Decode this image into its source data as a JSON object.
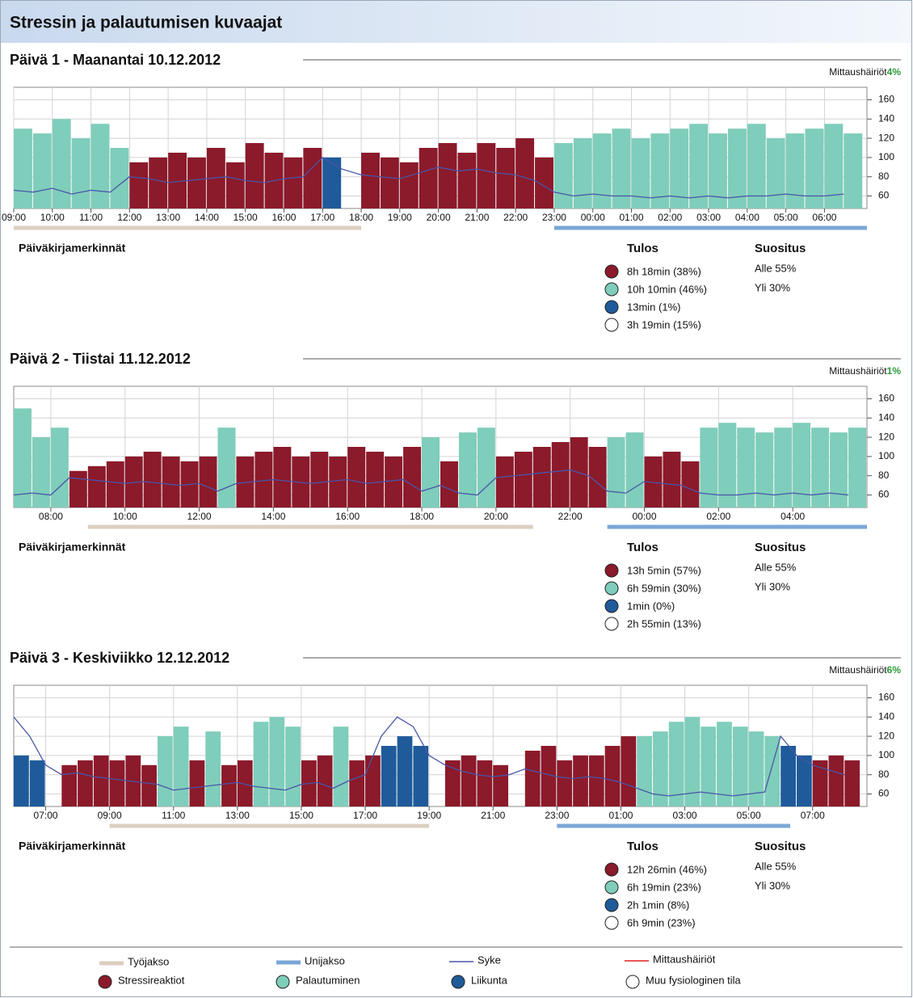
{
  "header": {
    "title": "Stressin ja palautumisen kuvaajat"
  },
  "labels": {
    "diary": "Päiväkirjamerkinnät",
    "result": "Tulos",
    "recommendation": "Suositus",
    "disturbance": "Mittaushäiriöt"
  },
  "chart_data": [
    {
      "type": "bar",
      "title": "Päivä 1 - Maanantai 10.12.2012",
      "disturbance": "4%",
      "xlim": [
        9,
        31.1
      ],
      "xticks": [
        {
          "value": 9,
          "label": "09:00"
        },
        {
          "value": 10,
          "label": "10:00"
        },
        {
          "value": 11,
          "label": "11:00"
        },
        {
          "value": 12,
          "label": "12:00"
        },
        {
          "value": 13,
          "label": "13:00"
        },
        {
          "value": 14,
          "label": "14:00"
        },
        {
          "value": 15,
          "label": "15:00"
        },
        {
          "value": 16,
          "label": "16:00"
        },
        {
          "value": 17,
          "label": "17:00"
        },
        {
          "value": 18,
          "label": "18:00"
        },
        {
          "value": 19,
          "label": "19:00"
        },
        {
          "value": 20,
          "label": "20:00"
        },
        {
          "value": 21,
          "label": "21:00"
        },
        {
          "value": 22,
          "label": "22:00"
        },
        {
          "value": 23,
          "label": "23:00"
        },
        {
          "value": 24,
          "label": "00:00"
        },
        {
          "value": 25,
          "label": "01:00"
        },
        {
          "value": 26,
          "label": "02:00"
        },
        {
          "value": 27,
          "label": "03:00"
        },
        {
          "value": 28,
          "label": "04:00"
        },
        {
          "value": 29,
          "label": "05:00"
        },
        {
          "value": 30,
          "label": "06:00"
        }
      ],
      "ylim": [
        47,
        173
      ],
      "yticks": [
        60,
        80,
        100,
        120,
        140,
        160
      ],
      "work_period": [
        9,
        18
      ],
      "sleep_period": [
        23,
        31.1
      ],
      "x": [
        9,
        9.5,
        10,
        10.5,
        11,
        11.5,
        12,
        12.5,
        13,
        13.5,
        14,
        14.5,
        15,
        15.5,
        16,
        16.5,
        17,
        17.5,
        18,
        18.5,
        19,
        19.5,
        20,
        20.5,
        21,
        21.5,
        22,
        22.5,
        23,
        23.5,
        24,
        24.5,
        25,
        25.5,
        26,
        26.5,
        27,
        27.5,
        28,
        28.5,
        29,
        29.5,
        30,
        30.5
      ],
      "values": [
        130,
        125,
        140,
        120,
        135,
        110,
        95,
        100,
        105,
        100,
        110,
        95,
        115,
        105,
        100,
        110,
        100,
        null,
        105,
        100,
        95,
        110,
        115,
        105,
        115,
        110,
        120,
        100,
        115,
        120,
        125,
        130,
        120,
        125,
        130,
        135,
        125,
        130,
        135,
        120,
        125,
        130,
        135,
        125
      ],
      "bar_colors": [
        "#7fcdbb",
        "#7fcdbb",
        "#7fcdbb",
        "#7fcdbb",
        "#7fcdbb",
        "#7fcdbb",
        "#8b1a2b",
        "#8b1a2b",
        "#8b1a2b",
        "#8b1a2b",
        "#8b1a2b",
        "#8b1a2b",
        "#8b1a2b",
        "#8b1a2b",
        "#8b1a2b",
        "#8b1a2b",
        "#1f5b9a",
        null,
        "#8b1a2b",
        "#8b1a2b",
        "#8b1a2b",
        "#8b1a2b",
        "#8b1a2b",
        "#8b1a2b",
        "#8b1a2b",
        "#8b1a2b",
        "#8b1a2b",
        "#8b1a2b",
        "#7fcdbb",
        "#7fcdbb",
        "#7fcdbb",
        "#7fcdbb",
        "#7fcdbb",
        "#7fcdbb",
        "#7fcdbb",
        "#7fcdbb",
        "#7fcdbb",
        "#7fcdbb",
        "#7fcdbb",
        "#7fcdbb",
        "#7fcdbb",
        "#7fcdbb",
        "#7fcdbb",
        "#7fcdbb"
      ],
      "line": {
        "color": "#4a55a8",
        "values": [
          66,
          64,
          68,
          62,
          66,
          64,
          80,
          78,
          74,
          76,
          78,
          80,
          76,
          74,
          78,
          80,
          100,
          88,
          82,
          80,
          78,
          84,
          90,
          86,
          88,
          84,
          82,
          76,
          64,
          60,
          62,
          60,
          60,
          58,
          60,
          58,
          60,
          58,
          60,
          60,
          62,
          60,
          60,
          62
        ]
      },
      "results": [
        {
          "color": "#8b1a2b",
          "text": "8h 18min (38%)"
        },
        {
          "color": "#7fcdbb",
          "text": "10h 10min (46%)"
        },
        {
          "color": "#1f5b9a",
          "text": "13min (1%)"
        },
        {
          "color": "#ffffff",
          "text": "3h 19min (15%)"
        }
      ],
      "recommendations": [
        "Alle 55%",
        "Yli 30%"
      ]
    },
    {
      "type": "bar",
      "title": "Päivä 2 - Tiistai 11.12.2012",
      "disturbance": "1%",
      "xlim": [
        7,
        30
      ],
      "xticks": [
        {
          "value": 8,
          "label": "08:00"
        },
        {
          "value": 10,
          "label": "10:00"
        },
        {
          "value": 12,
          "label": "12:00"
        },
        {
          "value": 14,
          "label": "14:00"
        },
        {
          "value": 16,
          "label": "16:00"
        },
        {
          "value": 18,
          "label": "18:00"
        },
        {
          "value": 20,
          "label": "20:00"
        },
        {
          "value": 22,
          "label": "22:00"
        },
        {
          "value": 24,
          "label": "00:00"
        },
        {
          "value": 26,
          "label": "02:00"
        },
        {
          "value": 28,
          "label": "04:00"
        }
      ],
      "ylim": [
        47,
        173
      ],
      "yticks": [
        60,
        80,
        100,
        120,
        140,
        160
      ],
      "work_period": [
        9,
        21
      ],
      "sleep_period": [
        23,
        30
      ],
      "x": [
        7,
        7.5,
        8,
        8.5,
        9,
        9.5,
        10,
        10.5,
        11,
        11.5,
        12,
        12.5,
        13,
        13.5,
        14,
        14.5,
        15,
        15.5,
        16,
        16.5,
        17,
        17.5,
        18,
        18.5,
        19,
        19.5,
        20,
        20.5,
        21,
        21.5,
        22,
        22.5,
        23,
        23.5,
        24,
        24.5,
        25,
        25.5,
        26,
        26.5,
        27,
        27.5,
        28,
        28.5,
        29,
        29.5
      ],
      "values": [
        150,
        120,
        130,
        85,
        90,
        95,
        100,
        105,
        100,
        95,
        100,
        130,
        100,
        105,
        110,
        100,
        105,
        100,
        110,
        105,
        100,
        110,
        120,
        95,
        125,
        130,
        100,
        105,
        110,
        115,
        120,
        110,
        120,
        125,
        100,
        105,
        95,
        130,
        135,
        130,
        125,
        130,
        135,
        130,
        125,
        130
      ],
      "bar_colors": [
        "#7fcdbb",
        "#7fcdbb",
        "#7fcdbb",
        "#8b1a2b",
        "#8b1a2b",
        "#8b1a2b",
        "#8b1a2b",
        "#8b1a2b",
        "#8b1a2b",
        "#8b1a2b",
        "#8b1a2b",
        "#7fcdbb",
        "#8b1a2b",
        "#8b1a2b",
        "#8b1a2b",
        "#8b1a2b",
        "#8b1a2b",
        "#8b1a2b",
        "#8b1a2b",
        "#8b1a2b",
        "#8b1a2b",
        "#8b1a2b",
        "#7fcdbb",
        "#8b1a2b",
        "#7fcdbb",
        "#7fcdbb",
        "#8b1a2b",
        "#8b1a2b",
        "#8b1a2b",
        "#8b1a2b",
        "#8b1a2b",
        "#8b1a2b",
        "#7fcdbb",
        "#7fcdbb",
        "#8b1a2b",
        "#8b1a2b",
        "#8b1a2b",
        "#7fcdbb",
        "#7fcdbb",
        "#7fcdbb",
        "#7fcdbb",
        "#7fcdbb",
        "#7fcdbb",
        "#7fcdbb",
        "#7fcdbb",
        "#7fcdbb"
      ],
      "line": {
        "color": "#4a55a8",
        "values": [
          60,
          62,
          60,
          78,
          76,
          74,
          72,
          74,
          72,
          70,
          72,
          64,
          72,
          74,
          76,
          74,
          72,
          74,
          76,
          72,
          74,
          76,
          64,
          70,
          62,
          60,
          78,
          80,
          82,
          84,
          86,
          80,
          64,
          62,
          74,
          72,
          70,
          62,
          60,
          60,
          62,
          60,
          62,
          60,
          62,
          60
        ]
      },
      "results": [
        {
          "color": "#8b1a2b",
          "text": "13h 5min (57%)"
        },
        {
          "color": "#7fcdbb",
          "text": "6h 59min (30%)"
        },
        {
          "color": "#1f5b9a",
          "text": "1min (0%)"
        },
        {
          "color": "#ffffff",
          "text": "2h 55min (13%)"
        }
      ],
      "recommendations": [
        "Alle 55%",
        "Yli 30%"
      ]
    },
    {
      "type": "bar",
      "title": "Päivä 3 - Keskiviikko 12.12.2012",
      "disturbance": "6%",
      "xlim": [
        6,
        32.7
      ],
      "xticks": [
        {
          "value": 7,
          "label": "07:00"
        },
        {
          "value": 9,
          "label": "09:00"
        },
        {
          "value": 11,
          "label": "11:00"
        },
        {
          "value": 13,
          "label": "13:00"
        },
        {
          "value": 15,
          "label": "15:00"
        },
        {
          "value": 17,
          "label": "17:00"
        },
        {
          "value": 19,
          "label": "19:00"
        },
        {
          "value": 21,
          "label": "21:00"
        },
        {
          "value": 23,
          "label": "23:00"
        },
        {
          "value": 25,
          "label": "01:00"
        },
        {
          "value": 27,
          "label": "03:00"
        },
        {
          "value": 29,
          "label": "05:00"
        },
        {
          "value": 31,
          "label": "07:00"
        }
      ],
      "ylim": [
        47,
        173
      ],
      "yticks": [
        60,
        80,
        100,
        120,
        140,
        160
      ],
      "work_period": [
        9,
        19
      ],
      "sleep_period": [
        23,
        30.3
      ],
      "x": [
        6,
        6.5,
        7,
        7.5,
        8,
        8.5,
        9,
        9.5,
        10,
        10.5,
        11,
        11.5,
        12,
        12.5,
        13,
        13.5,
        14,
        14.5,
        15,
        15.5,
        16,
        16.5,
        17,
        17.5,
        18,
        18.5,
        19,
        19.5,
        20,
        20.5,
        21,
        21.5,
        22,
        22.5,
        23,
        23.5,
        24,
        24.5,
        25,
        25.5,
        26,
        26.5,
        27,
        27.5,
        28,
        28.5,
        29,
        29.5,
        30,
        30.5,
        31,
        31.5,
        32
      ],
      "values": [
        100,
        95,
        null,
        90,
        95,
        100,
        95,
        100,
        90,
        120,
        130,
        95,
        125,
        90,
        95,
        135,
        140,
        130,
        95,
        100,
        130,
        95,
        100,
        110,
        120,
        110,
        null,
        95,
        100,
        95,
        90,
        null,
        105,
        110,
        95,
        100,
        100,
        110,
        120,
        120,
        125,
        135,
        140,
        130,
        135,
        130,
        125,
        120,
        110,
        100,
        95,
        100,
        95
      ],
      "bar_colors": [
        "#1f5b9a",
        "#1f5b9a",
        null,
        "#8b1a2b",
        "#8b1a2b",
        "#8b1a2b",
        "#8b1a2b",
        "#8b1a2b",
        "#8b1a2b",
        "#7fcdbb",
        "#7fcdbb",
        "#8b1a2b",
        "#7fcdbb",
        "#8b1a2b",
        "#8b1a2b",
        "#7fcdbb",
        "#7fcdbb",
        "#7fcdbb",
        "#8b1a2b",
        "#8b1a2b",
        "#7fcdbb",
        "#8b1a2b",
        "#8b1a2b",
        "#1f5b9a",
        "#1f5b9a",
        "#1f5b9a",
        null,
        "#8b1a2b",
        "#8b1a2b",
        "#8b1a2b",
        "#8b1a2b",
        null,
        "#8b1a2b",
        "#8b1a2b",
        "#8b1a2b",
        "#8b1a2b",
        "#8b1a2b",
        "#8b1a2b",
        "#8b1a2b",
        "#7fcdbb",
        "#7fcdbb",
        "#7fcdbb",
        "#7fcdbb",
        "#7fcdbb",
        "#7fcdbb",
        "#7fcdbb",
        "#7fcdbb",
        "#7fcdbb",
        "#1f5b9a",
        "#1f5b9a",
        "#8b1a2b",
        "#8b1a2b",
        "#8b1a2b"
      ],
      "line": {
        "color": "#4a55a8",
        "values": [
          140,
          120,
          90,
          80,
          82,
          78,
          76,
          74,
          72,
          70,
          64,
          66,
          68,
          70,
          72,
          68,
          66,
          64,
          70,
          72,
          66,
          74,
          80,
          120,
          140,
          130,
          100,
          90,
          84,
          80,
          78,
          80,
          86,
          82,
          78,
          76,
          78,
          76,
          72,
          66,
          60,
          58,
          60,
          62,
          60,
          58,
          60,
          62,
          120,
          100,
          90,
          85,
          80
        ]
      },
      "results": [
        {
          "color": "#8b1a2b",
          "text": "12h 26min (46%)"
        },
        {
          "color": "#7fcdbb",
          "text": "6h 19min (23%)"
        },
        {
          "color": "#1f5b9a",
          "text": "2h 1min (8%)"
        },
        {
          "color": "#ffffff",
          "text": "6h 9min (23%)"
        }
      ],
      "recommendations": [
        "Alle 55%",
        "Yli 30%"
      ]
    }
  ],
  "legend": {
    "lines": [
      {
        "name": "Työjakso",
        "color": "#dccfc0"
      },
      {
        "name": "Unijakso",
        "color": "#7ba7d6"
      },
      {
        "name": "Syke",
        "color": "#4a55a8"
      },
      {
        "name": "Mittaushäiriöt",
        "color": "#e02020"
      }
    ],
    "circles": [
      {
        "name": "Stressireaktiot",
        "color": "#8b1a2b"
      },
      {
        "name": "Palautuminen",
        "color": "#7fcdbb"
      },
      {
        "name": "Liikunta",
        "color": "#1f5b9a"
      },
      {
        "name": "Muu fysiologinen tila",
        "color": "#ffffff"
      }
    ]
  },
  "disturbance_color": "#2a9a3a"
}
